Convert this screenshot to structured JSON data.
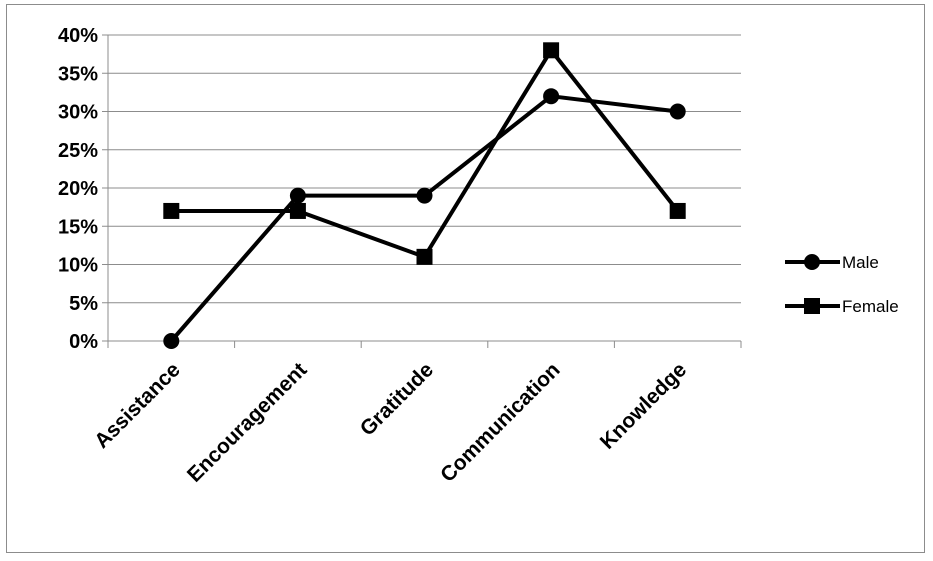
{
  "chart_data": {
    "type": "line",
    "categories": [
      "Assistance",
      "Encouragement",
      "Gratitude",
      "Communication",
      "Knowledge"
    ],
    "series": [
      {
        "name": "Male",
        "marker": "circle",
        "values": [
          0,
          19,
          19,
          32,
          30
        ]
      },
      {
        "name": "Female",
        "marker": "square",
        "values": [
          17,
          17,
          11,
          38,
          17
        ]
      }
    ],
    "y_ticks": [
      "0%",
      "5%",
      "10%",
      "15%",
      "20%",
      "25%",
      "30%",
      "35%",
      "40%"
    ],
    "ylim": [
      0,
      40
    ],
    "y_unit": "%",
    "grid": "horizontal",
    "legend_position": "right",
    "colors": {
      "line": "#000000",
      "grid": "#8c8c8c"
    }
  }
}
